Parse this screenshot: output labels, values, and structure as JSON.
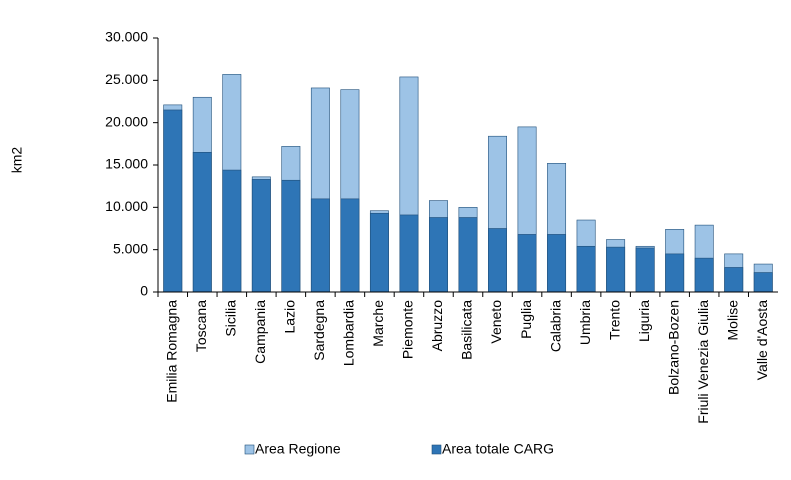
{
  "chart_data": {
    "type": "bar",
    "y_label": "km2",
    "categories": [
      "Emilia Romagna",
      "Toscana",
      "Sicilia",
      "Campania",
      "Lazio",
      "Sardegna",
      "Lombardia",
      "Marche",
      "Piemonte",
      "Abruzzo",
      "Basilicata",
      "Veneto",
      "Puglia",
      "Calabria",
      "Umbria",
      "Trento",
      "Liguria",
      "Bolzano-Bozen",
      "Friuli Venezia Giulia",
      "Molise",
      "Valle d'Aosta"
    ],
    "series": [
      {
        "name": "Area Regione",
        "color": "#9dc3e6",
        "values": [
          22100,
          23000,
          25700,
          13600,
          17200,
          24100,
          23900,
          9600,
          25400,
          10800,
          10000,
          18400,
          19500,
          15200,
          8500,
          6200,
          5400,
          7400,
          7900,
          4500,
          3300
        ]
      },
      {
        "name": "Area totale CARG",
        "color": "#2e75b6",
        "values": [
          21500,
          16500,
          14400,
          13300,
          13200,
          11000,
          11000,
          9300,
          9100,
          8800,
          8800,
          7500,
          6800,
          6800,
          5400,
          5300,
          5200,
          4500,
          4000,
          2900,
          2300
        ]
      }
    ],
    "ylim": [
      0,
      30000
    ],
    "yticks": [
      0,
      {
        "value": 5000,
        "label": "5.000"
      },
      {
        "value": 10000,
        "label": "10.000"
      },
      {
        "value": 15000,
        "label": "15.000"
      },
      {
        "value": 20000,
        "label": "20.000"
      },
      {
        "value": 25000,
        "label": "25.000"
      },
      {
        "value": 30000,
        "label": "30.000"
      }
    ],
    "overlap": true,
    "grid": false,
    "legend": "bottom"
  }
}
